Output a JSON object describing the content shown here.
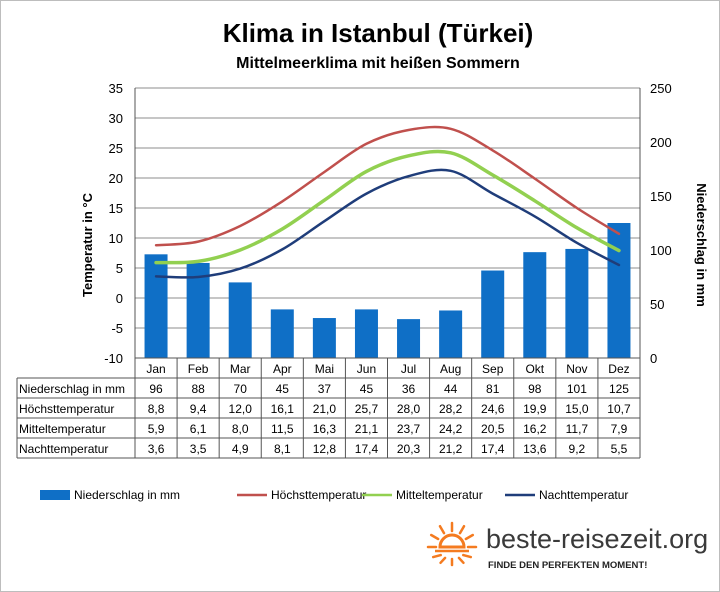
{
  "chart_data": {
    "type": "bar+line",
    "title": "Klima in Istanbul (Türkei)",
    "subtitle": "Mittelmeerklima mit heißen Sommern",
    "categories": [
      "Jan",
      "Feb",
      "Mar",
      "Apr",
      "Mai",
      "Jun",
      "Jul",
      "Aug",
      "Sep",
      "Okt",
      "Nov",
      "Dez"
    ],
    "y_left": {
      "label": "Temperatur in °C",
      "min": -10,
      "max": 35,
      "step": 5,
      "ticks": [
        "-10",
        "-5",
        "0",
        "5",
        "10",
        "15",
        "20",
        "25",
        "30",
        "35"
      ]
    },
    "y_right": {
      "label": "Niederschlag in mm",
      "min": 0,
      "max": 250,
      "step": 50,
      "ticks": [
        "0",
        "50",
        "100",
        "150",
        "200",
        "250"
      ]
    },
    "grid": true,
    "legend_position": "bottom",
    "series": [
      {
        "name": "Niederschlag in mm",
        "kind": "bar",
        "axis": "right",
        "color": "#0f6fc6",
        "values": [
          96,
          88,
          70,
          45,
          37,
          45,
          36,
          44,
          81,
          98,
          101,
          125
        ],
        "labels": [
          "96",
          "88",
          "70",
          "45",
          "37",
          "45",
          "36",
          "44",
          "81",
          "98",
          "101",
          "125"
        ]
      },
      {
        "name": "Höchsttemperatur",
        "kind": "line",
        "axis": "left",
        "color": "#c0504d",
        "values": [
          8.8,
          9.4,
          12.0,
          16.1,
          21.0,
          25.7,
          28.0,
          28.2,
          24.6,
          19.9,
          15.0,
          10.7
        ],
        "labels": [
          "8,8",
          "9,4",
          "12,0",
          "16,1",
          "21,0",
          "25,7",
          "28,0",
          "28,2",
          "24,6",
          "19,9",
          "15,0",
          "10,7"
        ]
      },
      {
        "name": "Mitteltemperatur",
        "kind": "line",
        "axis": "left",
        "color": "#92d050",
        "values": [
          5.9,
          6.1,
          8.0,
          11.5,
          16.3,
          21.1,
          23.7,
          24.2,
          20.5,
          16.2,
          11.7,
          7.9
        ],
        "labels": [
          "5,9",
          "6,1",
          "8,0",
          "11,5",
          "16,3",
          "21,1",
          "23,7",
          "24,2",
          "20,5",
          "16,2",
          "11,7",
          "7,9"
        ]
      },
      {
        "name": "Nachttemperatur",
        "kind": "line",
        "axis": "left",
        "color": "#1f3d7a",
        "values": [
          3.6,
          3.5,
          4.9,
          8.1,
          12.8,
          17.4,
          20.3,
          21.2,
          17.4,
          13.6,
          9.2,
          5.5
        ],
        "labels": [
          "3,6",
          "3,5",
          "4,9",
          "8,1",
          "12,8",
          "17,4",
          "20,3",
          "21,2",
          "17,4",
          "13,6",
          "9,2",
          "5,5"
        ]
      }
    ]
  },
  "branding": {
    "name": "beste-reisezeit.org",
    "slogan": "FINDE DEN PERFEKTEN MOMENT!",
    "logo_icon": "sun-icon",
    "accent_color": "#f47b20"
  }
}
